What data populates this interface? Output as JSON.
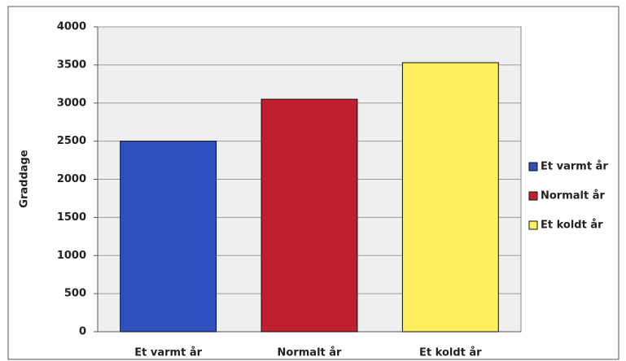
{
  "chart_data": {
    "type": "bar",
    "y_label": "Graddage",
    "categories": [
      "Et varmt år",
      "Normalt år",
      "Et koldt år"
    ],
    "series": [
      {
        "name": "Et varmt år",
        "color": "#3050c0",
        "values": [
          2500,
          null,
          null
        ]
      },
      {
        "name": "Normalt år",
        "color": "#c0202e",
        "values": [
          null,
          3050,
          null
        ]
      },
      {
        "name": "Et koldt år",
        "color": "#fdf05a",
        "values": [
          null,
          null,
          3530
        ]
      }
    ],
    "ylim": [
      0,
      4000
    ],
    "yticks": [
      0,
      500,
      1000,
      1500,
      2000,
      2500,
      3000,
      3500,
      4000
    ],
    "grid": true,
    "legend": "right"
  }
}
